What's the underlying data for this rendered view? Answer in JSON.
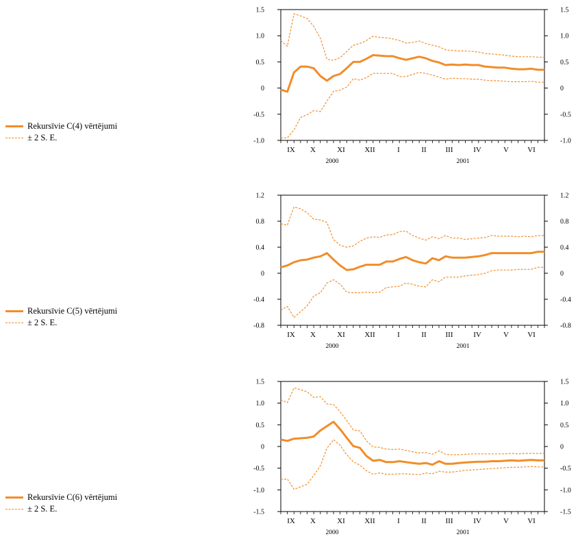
{
  "colors": {
    "line": "#f28c28",
    "axis": "#000000"
  },
  "chart_data": [
    {
      "type": "line",
      "ylim": [
        -1.0,
        1.5
      ],
      "yticks": [
        "1.5",
        "1.0",
        "0.5",
        "0",
        "-0.5",
        "-1.0"
      ],
      "ytick_values": [
        1.5,
        1.0,
        0.5,
        0,
        -0.5,
        -1.0
      ],
      "xticks": [
        "IX",
        "X",
        "XI",
        "XII",
        "I",
        "II",
        "III",
        "IV",
        "V",
        "VI"
      ],
      "years": [
        "2000",
        "2001"
      ],
      "legend": [
        "Rekursīvie C(4) vērtējumi",
        "± 2 S. E."
      ],
      "series": [
        {
          "name": "Rekursīvie C(4) vērtējumi",
          "style": "solid",
          "values": [
            -0.03,
            -0.07,
            0.3,
            0.41,
            0.41,
            0.38,
            0.23,
            0.14,
            0.23,
            0.27,
            0.38,
            0.5,
            0.5,
            0.56,
            0.63,
            0.62,
            0.61,
            0.61,
            0.57,
            0.54,
            0.57,
            0.6,
            0.57,
            0.52,
            0.49,
            0.44,
            0.45,
            0.44,
            0.45,
            0.44,
            0.44,
            0.41,
            0.4,
            0.39,
            0.39,
            0.37,
            0.36,
            0.36,
            0.37,
            0.35,
            0.35
          ]
        },
        {
          "name": "± 2 S. E.",
          "style": "dashed",
          "values": [
            0.91,
            0.8,
            1.42,
            1.38,
            1.33,
            1.18,
            0.95,
            0.55,
            0.53,
            0.58,
            0.7,
            0.82,
            0.85,
            0.91,
            0.99,
            0.97,
            0.96,
            0.94,
            0.91,
            0.86,
            0.87,
            0.9,
            0.85,
            0.82,
            0.79,
            0.73,
            0.72,
            0.71,
            0.71,
            0.7,
            0.69,
            0.66,
            0.65,
            0.64,
            0.63,
            0.61,
            0.6,
            0.6,
            0.6,
            0.59,
            0.59
          ]
        },
        {
          "name": "± 2 S. E.",
          "style": "dashed",
          "values": [
            -0.95,
            -0.95,
            -0.8,
            -0.56,
            -0.51,
            -0.43,
            -0.45,
            -0.25,
            -0.06,
            -0.04,
            0.02,
            0.18,
            0.15,
            0.2,
            0.28,
            0.28,
            0.28,
            0.28,
            0.22,
            0.22,
            0.26,
            0.3,
            0.28,
            0.25,
            0.21,
            0.17,
            0.19,
            0.18,
            0.18,
            0.17,
            0.17,
            0.15,
            0.14,
            0.14,
            0.13,
            0.12,
            0.12,
            0.12,
            0.13,
            0.11,
            0.11
          ]
        }
      ]
    },
    {
      "type": "line",
      "ylim": [
        -0.8,
        1.2
      ],
      "yticks": [
        "1.2",
        "0.8",
        "0.4",
        "0",
        "-0.4",
        "-0.8"
      ],
      "ytick_values": [
        1.2,
        0.8,
        0.4,
        0,
        -0.4,
        -0.8
      ],
      "xticks": [
        "IX",
        "X",
        "XI",
        "XII",
        "I",
        "II",
        "III",
        "IV",
        "V",
        "VI"
      ],
      "years": [
        "2000",
        "2001"
      ],
      "legend": [
        "Rekursīvie C(5) vērtējumi",
        "± 2 S. E."
      ],
      "series": [
        {
          "name": "Rekursīvie C(5) vērtējumi",
          "style": "solid",
          "values": [
            0.09,
            0.12,
            0.17,
            0.2,
            0.21,
            0.24,
            0.26,
            0.31,
            0.21,
            0.12,
            0.05,
            0.06,
            0.1,
            0.13,
            0.13,
            0.13,
            0.18,
            0.18,
            0.22,
            0.25,
            0.2,
            0.17,
            0.15,
            0.23,
            0.2,
            0.26,
            0.24,
            0.24,
            0.24,
            0.25,
            0.26,
            0.28,
            0.31,
            0.31,
            0.31,
            0.31,
            0.31,
            0.31,
            0.31,
            0.33,
            0.33
          ]
        },
        {
          "name": "± 2 S. E.",
          "style": "dashed",
          "values": [
            0.76,
            0.74,
            1.02,
            0.99,
            0.93,
            0.83,
            0.82,
            0.78,
            0.52,
            0.43,
            0.4,
            0.42,
            0.49,
            0.54,
            0.56,
            0.55,
            0.59,
            0.59,
            0.64,
            0.65,
            0.58,
            0.54,
            0.51,
            0.56,
            0.53,
            0.58,
            0.54,
            0.54,
            0.52,
            0.53,
            0.54,
            0.55,
            0.58,
            0.57,
            0.57,
            0.57,
            0.56,
            0.57,
            0.56,
            0.58,
            0.58
          ]
        },
        {
          "name": "± 2 S. E.",
          "style": "dashed",
          "values": [
            -0.57,
            -0.51,
            -0.68,
            -0.59,
            -0.5,
            -0.35,
            -0.3,
            -0.15,
            -0.1,
            -0.17,
            -0.29,
            -0.3,
            -0.3,
            -0.29,
            -0.3,
            -0.29,
            -0.22,
            -0.21,
            -0.2,
            -0.15,
            -0.17,
            -0.2,
            -0.21,
            -0.1,
            -0.13,
            -0.06,
            -0.06,
            -0.06,
            -0.04,
            -0.03,
            -0.02,
            0.0,
            0.04,
            0.05,
            0.05,
            0.05,
            0.06,
            0.06,
            0.06,
            0.09,
            0.09
          ]
        }
      ]
    },
    {
      "type": "line",
      "ylim": [
        -1.5,
        1.5
      ],
      "yticks": [
        "1.5",
        "1.0",
        "0.5",
        "0",
        "-0.5",
        "-1.0",
        "-1.5"
      ],
      "ytick_values": [
        1.5,
        1.0,
        0.5,
        0,
        -0.5,
        -1.0,
        -1.5
      ],
      "xticks": [
        "IX",
        "X",
        "XI",
        "XII",
        "I",
        "II",
        "III",
        "IV",
        "V",
        "VI"
      ],
      "years": [
        "2000",
        "2001"
      ],
      "legend": [
        "Rekursīvie C(6) vērtējumi",
        "± 2 S. E."
      ],
      "series": [
        {
          "name": "Rekursīvie C(6) vērtējumi",
          "style": "solid",
          "values": [
            0.16,
            0.13,
            0.18,
            0.19,
            0.2,
            0.23,
            0.37,
            0.47,
            0.57,
            0.4,
            0.2,
            0.01,
            -0.03,
            -0.22,
            -0.33,
            -0.31,
            -0.36,
            -0.36,
            -0.34,
            -0.36,
            -0.38,
            -0.4,
            -0.38,
            -0.42,
            -0.34,
            -0.4,
            -0.4,
            -0.38,
            -0.37,
            -0.36,
            -0.35,
            -0.35,
            -0.34,
            -0.34,
            -0.33,
            -0.32,
            -0.33,
            -0.32,
            -0.31,
            -0.32,
            -0.32
          ]
        },
        {
          "name": "± 2 S. E.",
          "style": "dashed",
          "values": [
            1.08,
            1.01,
            1.35,
            1.31,
            1.26,
            1.13,
            1.15,
            0.98,
            0.97,
            0.8,
            0.6,
            0.38,
            0.36,
            0.13,
            -0.01,
            -0.02,
            -0.06,
            -0.07,
            -0.06,
            -0.09,
            -0.12,
            -0.15,
            -0.14,
            -0.18,
            -0.1,
            -0.18,
            -0.19,
            -0.19,
            -0.18,
            -0.17,
            -0.17,
            -0.17,
            -0.17,
            -0.17,
            -0.17,
            -0.16,
            -0.17,
            -0.16,
            -0.16,
            -0.16,
            -0.16
          ]
        },
        {
          "name": "± 2 S. E.",
          "style": "dashed",
          "values": [
            -0.76,
            -0.75,
            -0.99,
            -0.93,
            -0.87,
            -0.67,
            -0.44,
            -0.04,
            0.16,
            0.03,
            -0.19,
            -0.35,
            -0.43,
            -0.56,
            -0.64,
            -0.61,
            -0.64,
            -0.64,
            -0.63,
            -0.63,
            -0.64,
            -0.65,
            -0.61,
            -0.63,
            -0.57,
            -0.59,
            -0.59,
            -0.57,
            -0.55,
            -0.54,
            -0.53,
            -0.52,
            -0.51,
            -0.5,
            -0.49,
            -0.48,
            -0.48,
            -0.47,
            -0.46,
            -0.47,
            -0.47
          ]
        }
      ]
    }
  ]
}
